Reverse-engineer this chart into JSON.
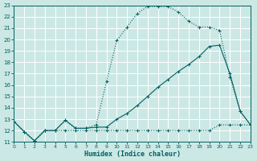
{
  "xlabel": "Humidex (Indice chaleur)",
  "bg_color": "#cce8e5",
  "grid_color": "#b0d8d4",
  "line_color": "#006060",
  "xlim": [
    0,
    23
  ],
  "ylim": [
    11,
    23
  ],
  "xticks": [
    0,
    1,
    2,
    3,
    4,
    5,
    6,
    7,
    8,
    9,
    10,
    11,
    12,
    13,
    14,
    15,
    16,
    17,
    18,
    19,
    20,
    21,
    22,
    23
  ],
  "yticks": [
    11,
    12,
    13,
    14,
    15,
    16,
    17,
    18,
    19,
    20,
    21,
    22,
    23
  ],
  "line1_x": [
    0,
    1,
    2,
    3,
    4,
    5,
    6,
    7,
    8,
    9,
    10,
    11,
    12,
    13,
    14,
    15,
    16,
    17,
    18,
    19,
    20,
    21,
    22,
    23
  ],
  "line1_y": [
    12.8,
    11.9,
    11.1,
    12.0,
    12.0,
    12.0,
    12.0,
    12.0,
    12.0,
    12.0,
    12.0,
    12.0,
    12.0,
    12.0,
    12.0,
    12.0,
    12.0,
    12.0,
    12.0,
    12.0,
    12.5,
    12.5,
    12.5,
    12.5
  ],
  "line2_x": [
    0,
    1,
    2,
    3,
    4,
    5,
    6,
    7,
    8,
    9,
    10,
    11,
    12,
    13,
    14,
    15,
    16,
    17,
    18,
    19,
    20,
    21,
    22,
    23
  ],
  "line2_y": [
    12.8,
    11.9,
    11.1,
    12.0,
    12.0,
    12.9,
    12.2,
    12.2,
    12.3,
    12.3,
    13.0,
    13.5,
    14.2,
    15.0,
    15.8,
    16.5,
    17.2,
    17.8,
    18.5,
    19.4,
    19.5,
    17.0,
    13.7,
    12.5
  ],
  "line3_x": [
    0,
    1,
    2,
    3,
    4,
    5,
    6,
    7,
    8,
    9,
    10,
    11,
    12,
    13,
    14,
    15,
    16,
    17,
    18,
    19,
    20,
    21,
    22,
    23
  ],
  "line3_y": [
    12.8,
    11.9,
    11.1,
    12.0,
    12.0,
    12.9,
    12.2,
    12.2,
    12.5,
    16.3,
    19.9,
    21.1,
    22.3,
    22.9,
    22.9,
    22.9,
    22.4,
    21.6,
    21.1,
    21.1,
    20.8,
    16.7,
    13.7,
    12.5
  ]
}
